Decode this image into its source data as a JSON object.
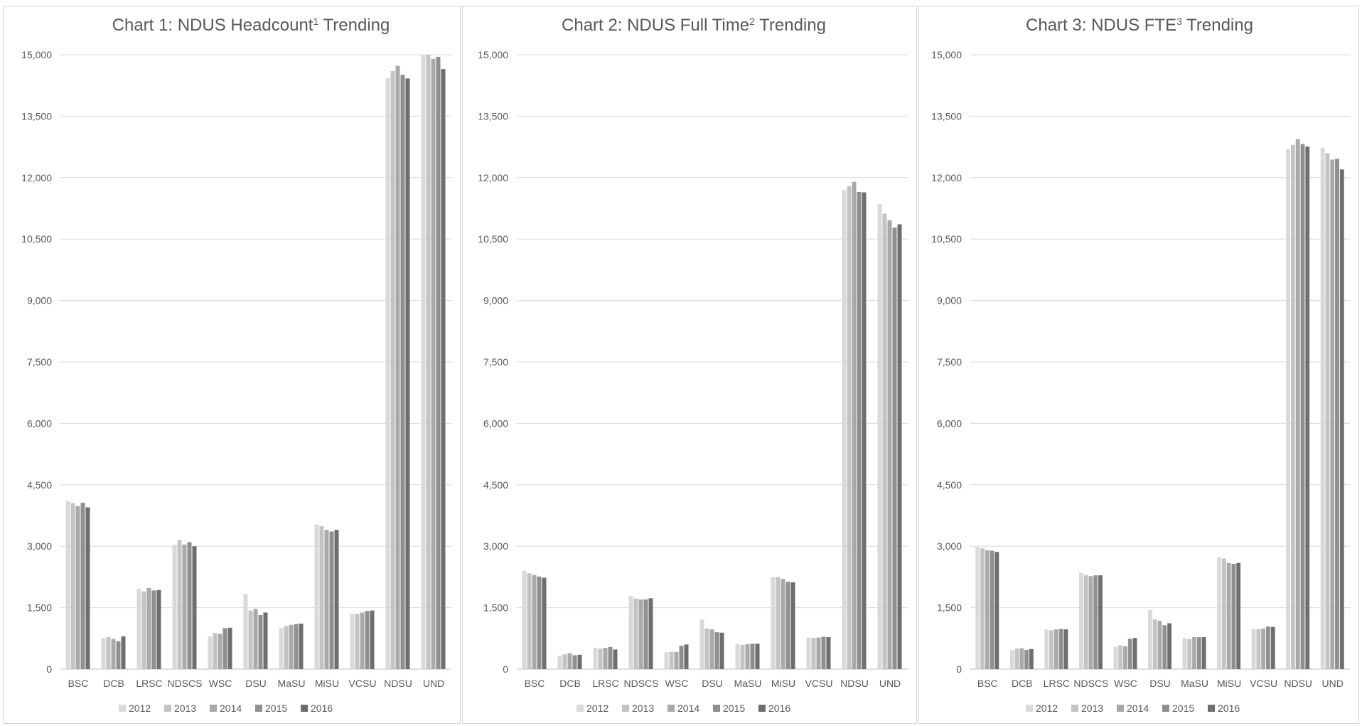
{
  "chart_data": [
    {
      "type": "bar",
      "title": "Chart 1: NDUS Headcount",
      "title_sup": "1",
      "title_tail": " Trending",
      "categories": [
        "BSC",
        "DCB",
        "LRSC",
        "NDSCS",
        "WSC",
        "DSU",
        "MaSU",
        "MiSU",
        "VCSU",
        "NDSU",
        "UND"
      ],
      "ylim": [
        0,
        15000
      ],
      "yticks": [
        "0",
        "1,500",
        "3,000",
        "4,500",
        "6,000",
        "7,500",
        "9,000",
        "10,500",
        "12,000",
        "13,500",
        "15,000"
      ],
      "grid": true,
      "legend": "bottom",
      "series": [
        {
          "name": "2012",
          "values": [
            4100,
            760,
            1960,
            3040,
            800,
            1830,
            1000,
            3530,
            1350,
            14430,
            15000
          ]
        },
        {
          "name": "2013",
          "values": [
            4050,
            780,
            1900,
            3150,
            880,
            1430,
            1050,
            3490,
            1350,
            14600,
            15000
          ]
        },
        {
          "name": "2014",
          "values": [
            3980,
            740,
            1980,
            3040,
            860,
            1470,
            1080,
            3400,
            1380,
            14730,
            14900
          ]
        },
        {
          "name": "2015",
          "values": [
            4060,
            680,
            1920,
            3100,
            1000,
            1320,
            1100,
            3360,
            1420,
            14510,
            14950
          ]
        },
        {
          "name": "2016",
          "values": [
            3950,
            800,
            1930,
            3000,
            1010,
            1380,
            1110,
            3400,
            1430,
            14420,
            14650
          ]
        }
      ]
    },
    {
      "type": "bar",
      "title": "Chart 2: NDUS Full Time",
      "title_sup": "2",
      "title_tail": " Trending",
      "categories": [
        "BSC",
        "DCB",
        "LRSC",
        "NDSCS",
        "WSC",
        "DSU",
        "MaSU",
        "MiSU",
        "VCSU",
        "NDSU",
        "UND"
      ],
      "ylim": [
        0,
        15000
      ],
      "yticks": [
        "0",
        "1,500",
        "3,000",
        "4,500",
        "6,000",
        "7,500",
        "9,000",
        "10,500",
        "12,000",
        "13,500",
        "15,000"
      ],
      "grid": true,
      "legend": "bottom",
      "series": [
        {
          "name": "2012",
          "values": [
            2400,
            330,
            520,
            1780,
            410,
            1210,
            610,
            2250,
            770,
            11700,
            11350
          ]
        },
        {
          "name": "2013",
          "values": [
            2340,
            360,
            500,
            1720,
            420,
            990,
            590,
            2250,
            760,
            11790,
            11120
          ]
        },
        {
          "name": "2014",
          "values": [
            2300,
            390,
            520,
            1700,
            420,
            970,
            610,
            2200,
            770,
            11900,
            10960
          ]
        },
        {
          "name": "2015",
          "values": [
            2260,
            340,
            540,
            1700,
            570,
            900,
            620,
            2130,
            790,
            11650,
            10780
          ]
        },
        {
          "name": "2016",
          "values": [
            2230,
            350,
            480,
            1730,
            600,
            890,
            620,
            2120,
            780,
            11640,
            10860
          ]
        }
      ]
    },
    {
      "type": "bar",
      "title": "Chart 3: NDUS FTE",
      "title_sup": "3",
      "title_tail": " Trending",
      "categories": [
        "BSC",
        "DCB",
        "LRSC",
        "NDSCS",
        "WSC",
        "DSU",
        "MaSU",
        "MiSU",
        "VCSU",
        "NDSU",
        "UND"
      ],
      "ylim": [
        0,
        15000
      ],
      "yticks": [
        "0",
        "1,500",
        "3,000",
        "4,500",
        "6,000",
        "7,500",
        "9,000",
        "10,500",
        "12,000",
        "13,500",
        "15,000"
      ],
      "grid": true,
      "legend": "bottom",
      "series": [
        {
          "name": "2012",
          "values": [
            2980,
            460,
            970,
            2350,
            540,
            1440,
            760,
            2730,
            980,
            12700,
            12730
          ]
        },
        {
          "name": "2013",
          "values": [
            2950,
            500,
            950,
            2300,
            580,
            1210,
            730,
            2700,
            980,
            12800,
            12600
          ]
        },
        {
          "name": "2014",
          "values": [
            2900,
            510,
            970,
            2270,
            560,
            1180,
            780,
            2590,
            990,
            12940,
            12440
          ]
        },
        {
          "name": "2015",
          "values": [
            2890,
            470,
            980,
            2290,
            740,
            1070,
            780,
            2570,
            1040,
            12820,
            12460
          ]
        },
        {
          "name": "2016",
          "values": [
            2860,
            490,
            970,
            2290,
            760,
            1120,
            780,
            2590,
            1030,
            12760,
            12200
          ]
        }
      ]
    }
  ],
  "colors": {
    "2012": "#d9d9d9",
    "2013": "#c3c3c3",
    "2014": "#a9a9a9",
    "2015": "#8f8f8f",
    "2016": "#6e6e6e",
    "text": "#595959",
    "grid": "#d9d9d9"
  }
}
